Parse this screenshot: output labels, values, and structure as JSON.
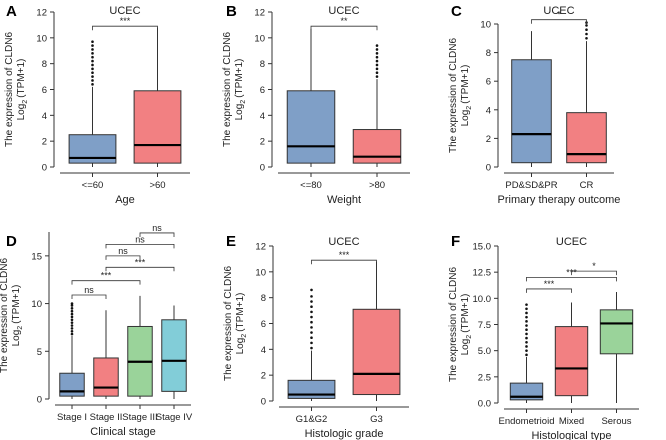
{
  "figure": {
    "shared_ylabel_line1": "The expression of CLDN6",
    "shared_ylabel_log": "Log",
    "shared_ylabel_sub": "2",
    "shared_ylabel_rest": "(TPM+1)"
  },
  "colors": {
    "blue": "#7f9fc7",
    "red": "#f28082",
    "green": "#9ad39a",
    "teal": "#82cdd8",
    "box_stroke": "#333333",
    "axis": "#333333",
    "text": "#222222"
  },
  "chart_data": [
    {
      "panel": "A",
      "type": "box",
      "title": "UCEC",
      "xlabel": "Age",
      "ylim": [
        0,
        12
      ],
      "yticks": [
        0,
        2,
        4,
        6,
        8,
        10,
        12
      ],
      "categories": [
        "<=60",
        ">60"
      ],
      "boxes": [
        {
          "q1": 0.3,
          "median": 0.7,
          "q3": 2.5,
          "lo": 0,
          "hi": 6.2,
          "color": "blue",
          "outliers": [
            6.4,
            6.7,
            7.0,
            7.3,
            7.6,
            7.9,
            8.2,
            8.5,
            8.8,
            9.1,
            9.4,
            9.7
          ]
        },
        {
          "q1": 0.3,
          "median": 1.7,
          "q3": 5.9,
          "lo": 0,
          "hi": 10.8,
          "color": "red",
          "outliers": []
        }
      ],
      "comparisons": [
        {
          "from": 0,
          "to": 1,
          "label": "***",
          "y": 10.9
        }
      ]
    },
    {
      "panel": "B",
      "type": "box",
      "title": "UCEC",
      "xlabel": "Weight",
      "ylim": [
        0,
        12
      ],
      "yticks": [
        0,
        2,
        4,
        6,
        8,
        10,
        12
      ],
      "categories": [
        "<=80",
        ">80"
      ],
      "boxes": [
        {
          "q1": 0.3,
          "median": 1.6,
          "q3": 5.9,
          "lo": 0,
          "hi": 10.7,
          "color": "blue",
          "outliers": []
        },
        {
          "q1": 0.3,
          "median": 0.8,
          "q3": 2.9,
          "lo": 0,
          "hi": 6.8,
          "color": "red",
          "outliers": [
            7.0,
            7.3,
            7.6,
            7.9,
            8.2,
            8.5,
            8.8,
            9.1,
            9.4
          ]
        }
      ],
      "comparisons": [
        {
          "from": 0,
          "to": 1,
          "label": "**",
          "y": 10.9
        }
      ]
    },
    {
      "panel": "C",
      "type": "box",
      "title": "UCEC",
      "xlabel": "Primary therapy outcome",
      "ylim": [
        0,
        10
      ],
      "yticks": [
        0,
        2,
        4,
        6,
        8,
        10
      ],
      "categories": [
        "PD&SD&PR",
        "CR"
      ],
      "boxes": [
        {
          "q1": 0.3,
          "median": 2.3,
          "q3": 7.5,
          "lo": 0,
          "hi": 9.5,
          "color": "blue",
          "outliers": []
        },
        {
          "q1": 0.3,
          "median": 0.9,
          "q3": 3.8,
          "lo": 0,
          "hi": 8.8,
          "color": "red",
          "outliers": [
            9.0,
            9.3,
            9.6,
            9.9,
            10.1
          ]
        }
      ],
      "comparisons": [
        {
          "from": 0,
          "to": 1,
          "label": "*",
          "y": 10.3
        }
      ]
    },
    {
      "panel": "D",
      "type": "box",
      "title": "",
      "xlabel": "Clinical stage",
      "ylim": [
        0,
        17.5
      ],
      "yticks": [
        0,
        5,
        10,
        15
      ],
      "categories": [
        "Stage I",
        "Stage II",
        "Stage III",
        "Stage IV"
      ],
      "boxes": [
        {
          "q1": 0.3,
          "median": 0.8,
          "q3": 2.7,
          "lo": 0,
          "hi": 6.6,
          "color": "blue",
          "outliers": [
            6.8,
            7.1,
            7.4,
            7.7,
            8.0,
            8.3,
            8.6,
            8.9,
            9.2,
            9.5,
            9.8,
            10.0
          ]
        },
        {
          "q1": 0.3,
          "median": 1.2,
          "q3": 4.3,
          "lo": 0,
          "hi": 9.3,
          "color": "red",
          "outliers": []
        },
        {
          "q1": 0.3,
          "median": 3.9,
          "q3": 7.6,
          "lo": 0,
          "hi": 10.8,
          "color": "green",
          "outliers": []
        },
        {
          "q1": 0.8,
          "median": 4.0,
          "q3": 8.3,
          "lo": 0,
          "hi": 9.8,
          "color": "teal",
          "outliers": []
        }
      ],
      "comparisons": [
        {
          "from": 0,
          "to": 1,
          "label": "ns",
          "y": 10.9
        },
        {
          "from": 0,
          "to": 2,
          "label": "***",
          "y": 12.4
        },
        {
          "from": 1,
          "to": 3,
          "label": "***",
          "y": 13.8
        },
        {
          "from": 1,
          "to": 2,
          "label": "ns",
          "y": 15.0
        },
        {
          "from": 1,
          "to": 3,
          "label": "ns",
          "y": 16.2
        },
        {
          "from": 2,
          "to": 3,
          "label": "ns",
          "y": 17.4
        }
      ]
    },
    {
      "panel": "E",
      "type": "box",
      "title": "UCEC",
      "xlabel": "Histologic grade",
      "ylim": [
        0,
        12
      ],
      "yticks": [
        0,
        2,
        4,
        6,
        8,
        10,
        12
      ],
      "categories": [
        "G1&G2",
        "G3"
      ],
      "boxes": [
        {
          "q1": 0.2,
          "median": 0.5,
          "q3": 1.6,
          "lo": 0,
          "hi": 3.9,
          "color": "blue",
          "outliers": [
            4.1,
            4.5,
            4.9,
            5.3,
            5.7,
            6.1,
            6.5,
            6.9,
            7.3,
            7.7,
            8.1,
            8.6
          ]
        },
        {
          "q1": 0.5,
          "median": 2.1,
          "q3": 7.1,
          "lo": 0,
          "hi": 10.8,
          "color": "red",
          "outliers": []
        }
      ],
      "comparisons": [
        {
          "from": 0,
          "to": 1,
          "label": "***",
          "y": 10.9
        }
      ]
    },
    {
      "panel": "F",
      "type": "box",
      "title": "UCEC",
      "xlabel": "Histological type",
      "ylim": [
        0,
        15
      ],
      "yticks": [
        0,
        2.5,
        5,
        7.5,
        10,
        12.5,
        15
      ],
      "ytick_labels": [
        "0.0",
        "2.5",
        "5.0",
        "7.5",
        "10.0",
        "12.5",
        "15.0"
      ],
      "categories": [
        "Endometrioid",
        "Mixed",
        "Serous"
      ],
      "boxes": [
        {
          "q1": 0.3,
          "median": 0.6,
          "q3": 1.9,
          "lo": 0,
          "hi": 4.4,
          "color": "blue",
          "outliers": [
            4.6,
            5.0,
            5.4,
            5.8,
            6.2,
            6.6,
            7.0,
            7.4,
            7.8,
            8.2,
            8.6,
            9.0,
            9.4
          ]
        },
        {
          "q1": 0.7,
          "median": 3.3,
          "q3": 7.3,
          "lo": 0,
          "hi": 9.6,
          "color": "red",
          "outliers": []
        },
        {
          "q1": 4.7,
          "median": 7.6,
          "q3": 8.9,
          "lo": 0,
          "hi": 10.6,
          "color": "green",
          "outliers": []
        }
      ],
      "comparisons": [
        {
          "from": 0,
          "to": 1,
          "label": "***",
          "y": 10.9
        },
        {
          "from": 0,
          "to": 2,
          "label": "***",
          "y": 12.0
        },
        {
          "from": 1,
          "to": 2,
          "label": "*",
          "y": 12.6
        }
      ]
    }
  ]
}
